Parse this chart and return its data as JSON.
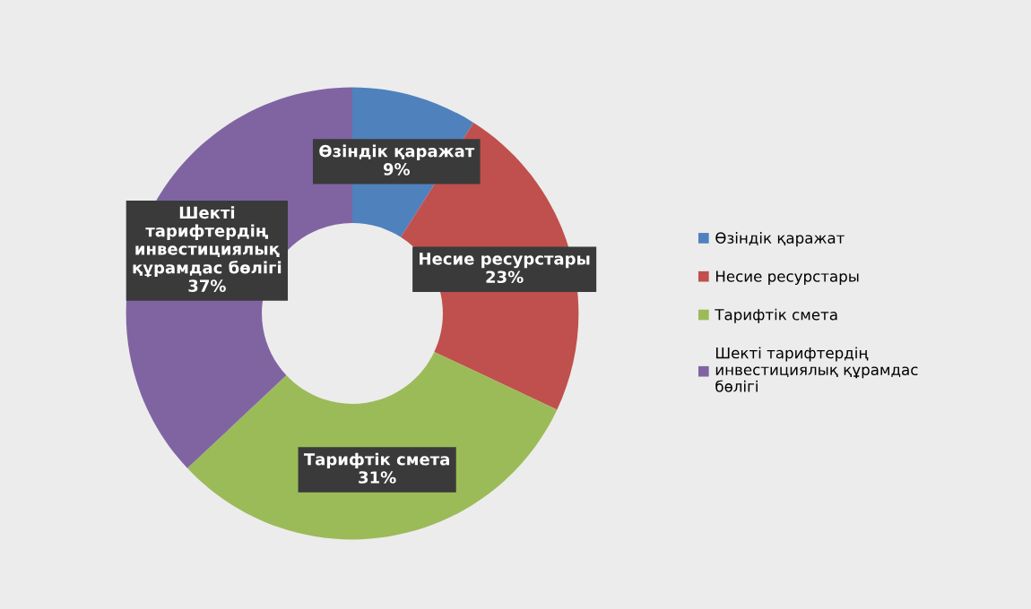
{
  "chart_data": {
    "type": "donut",
    "categories": [
      "Өзіндік қаражат",
      "Несие ресурстары",
      "Тарифтік смета",
      "Шекті тарифтердің инвестициялық құрамдас бөлігі"
    ],
    "values": [
      9,
      23,
      31,
      37
    ],
    "colors": [
      "#4f81bd",
      "#c0504d",
      "#9bbb59",
      "#8064a2"
    ],
    "value_labels": [
      "9%",
      "23%",
      "31%",
      "37%"
    ],
    "legend": "right"
  }
}
